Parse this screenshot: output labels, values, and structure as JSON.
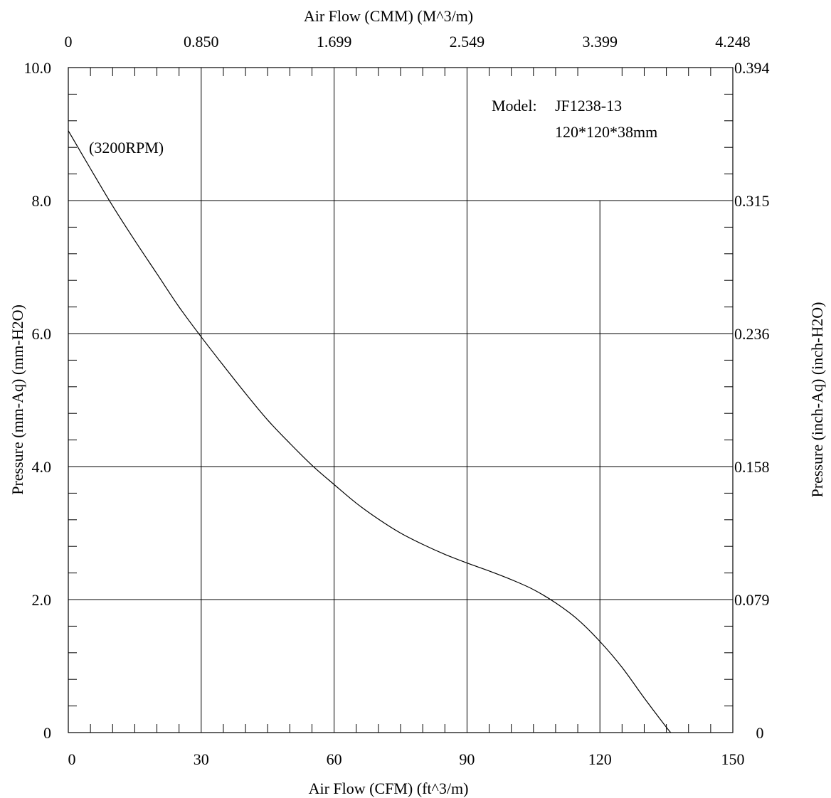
{
  "chart_data": {
    "type": "line",
    "title": "",
    "xlabel": "Air Flow (CFM) (ft^3/m)",
    "xlabel_top": "Air Flow (CMM) (M^3/m)",
    "ylabel": "Pressure (mm-Aq) (mm-H2O)",
    "ylabel_right": "Pressure (inch-Aq) (inch-H2O)",
    "xlim": [
      0,
      150
    ],
    "ylim": [
      0,
      10
    ],
    "grid": true,
    "x_ticks": [
      {
        "value": 0,
        "label": "0"
      },
      {
        "value": 30,
        "label": "30"
      },
      {
        "value": 60,
        "label": "60"
      },
      {
        "value": 90,
        "label": "90"
      },
      {
        "value": 120,
        "label": "120"
      },
      {
        "value": 150,
        "label": "150"
      }
    ],
    "x_top_ticks": [
      {
        "value": 0,
        "label": "0"
      },
      {
        "value": 30,
        "label": "0.850"
      },
      {
        "value": 60,
        "label": "1.699"
      },
      {
        "value": 90,
        "label": "2.549"
      },
      {
        "value": 120,
        "label": "3.399"
      },
      {
        "value": 150,
        "label": "4.248"
      }
    ],
    "y_ticks": [
      {
        "value": 0,
        "label": "0"
      },
      {
        "value": 2,
        "label": "2.0"
      },
      {
        "value": 4,
        "label": "4.0"
      },
      {
        "value": 6,
        "label": "6.0"
      },
      {
        "value": 8,
        "label": "8.0"
      },
      {
        "value": 10,
        "label": "10.0"
      }
    ],
    "y_right_ticks": [
      {
        "value": 0,
        "label": "0"
      },
      {
        "value": 2,
        "label": "0.079"
      },
      {
        "value": 4,
        "label": "0.158"
      },
      {
        "value": 6,
        "label": "0.236"
      },
      {
        "value": 8,
        "label": "0.315"
      },
      {
        "value": 10,
        "label": "0.394"
      }
    ],
    "model_label": "Model:",
    "model_name": "JF1238-13",
    "model_size": "120*120*38mm",
    "series": [
      {
        "name": "(3200RPM)",
        "x": [
          0,
          5,
          10,
          15,
          20,
          25,
          30,
          35,
          40,
          45,
          50,
          55,
          60,
          65,
          70,
          75,
          80,
          85,
          90,
          95,
          100,
          105,
          110,
          115,
          120,
          125,
          130,
          135,
          136
        ],
        "y": [
          9.05,
          8.48,
          7.92,
          7.4,
          6.9,
          6.4,
          5.95,
          5.52,
          5.1,
          4.7,
          4.35,
          4.02,
          3.73,
          3.45,
          3.21,
          3.0,
          2.83,
          2.68,
          2.55,
          2.43,
          2.3,
          2.15,
          1.95,
          1.7,
          1.37,
          0.98,
          0.52,
          0.08,
          0.0
        ]
      }
    ]
  }
}
